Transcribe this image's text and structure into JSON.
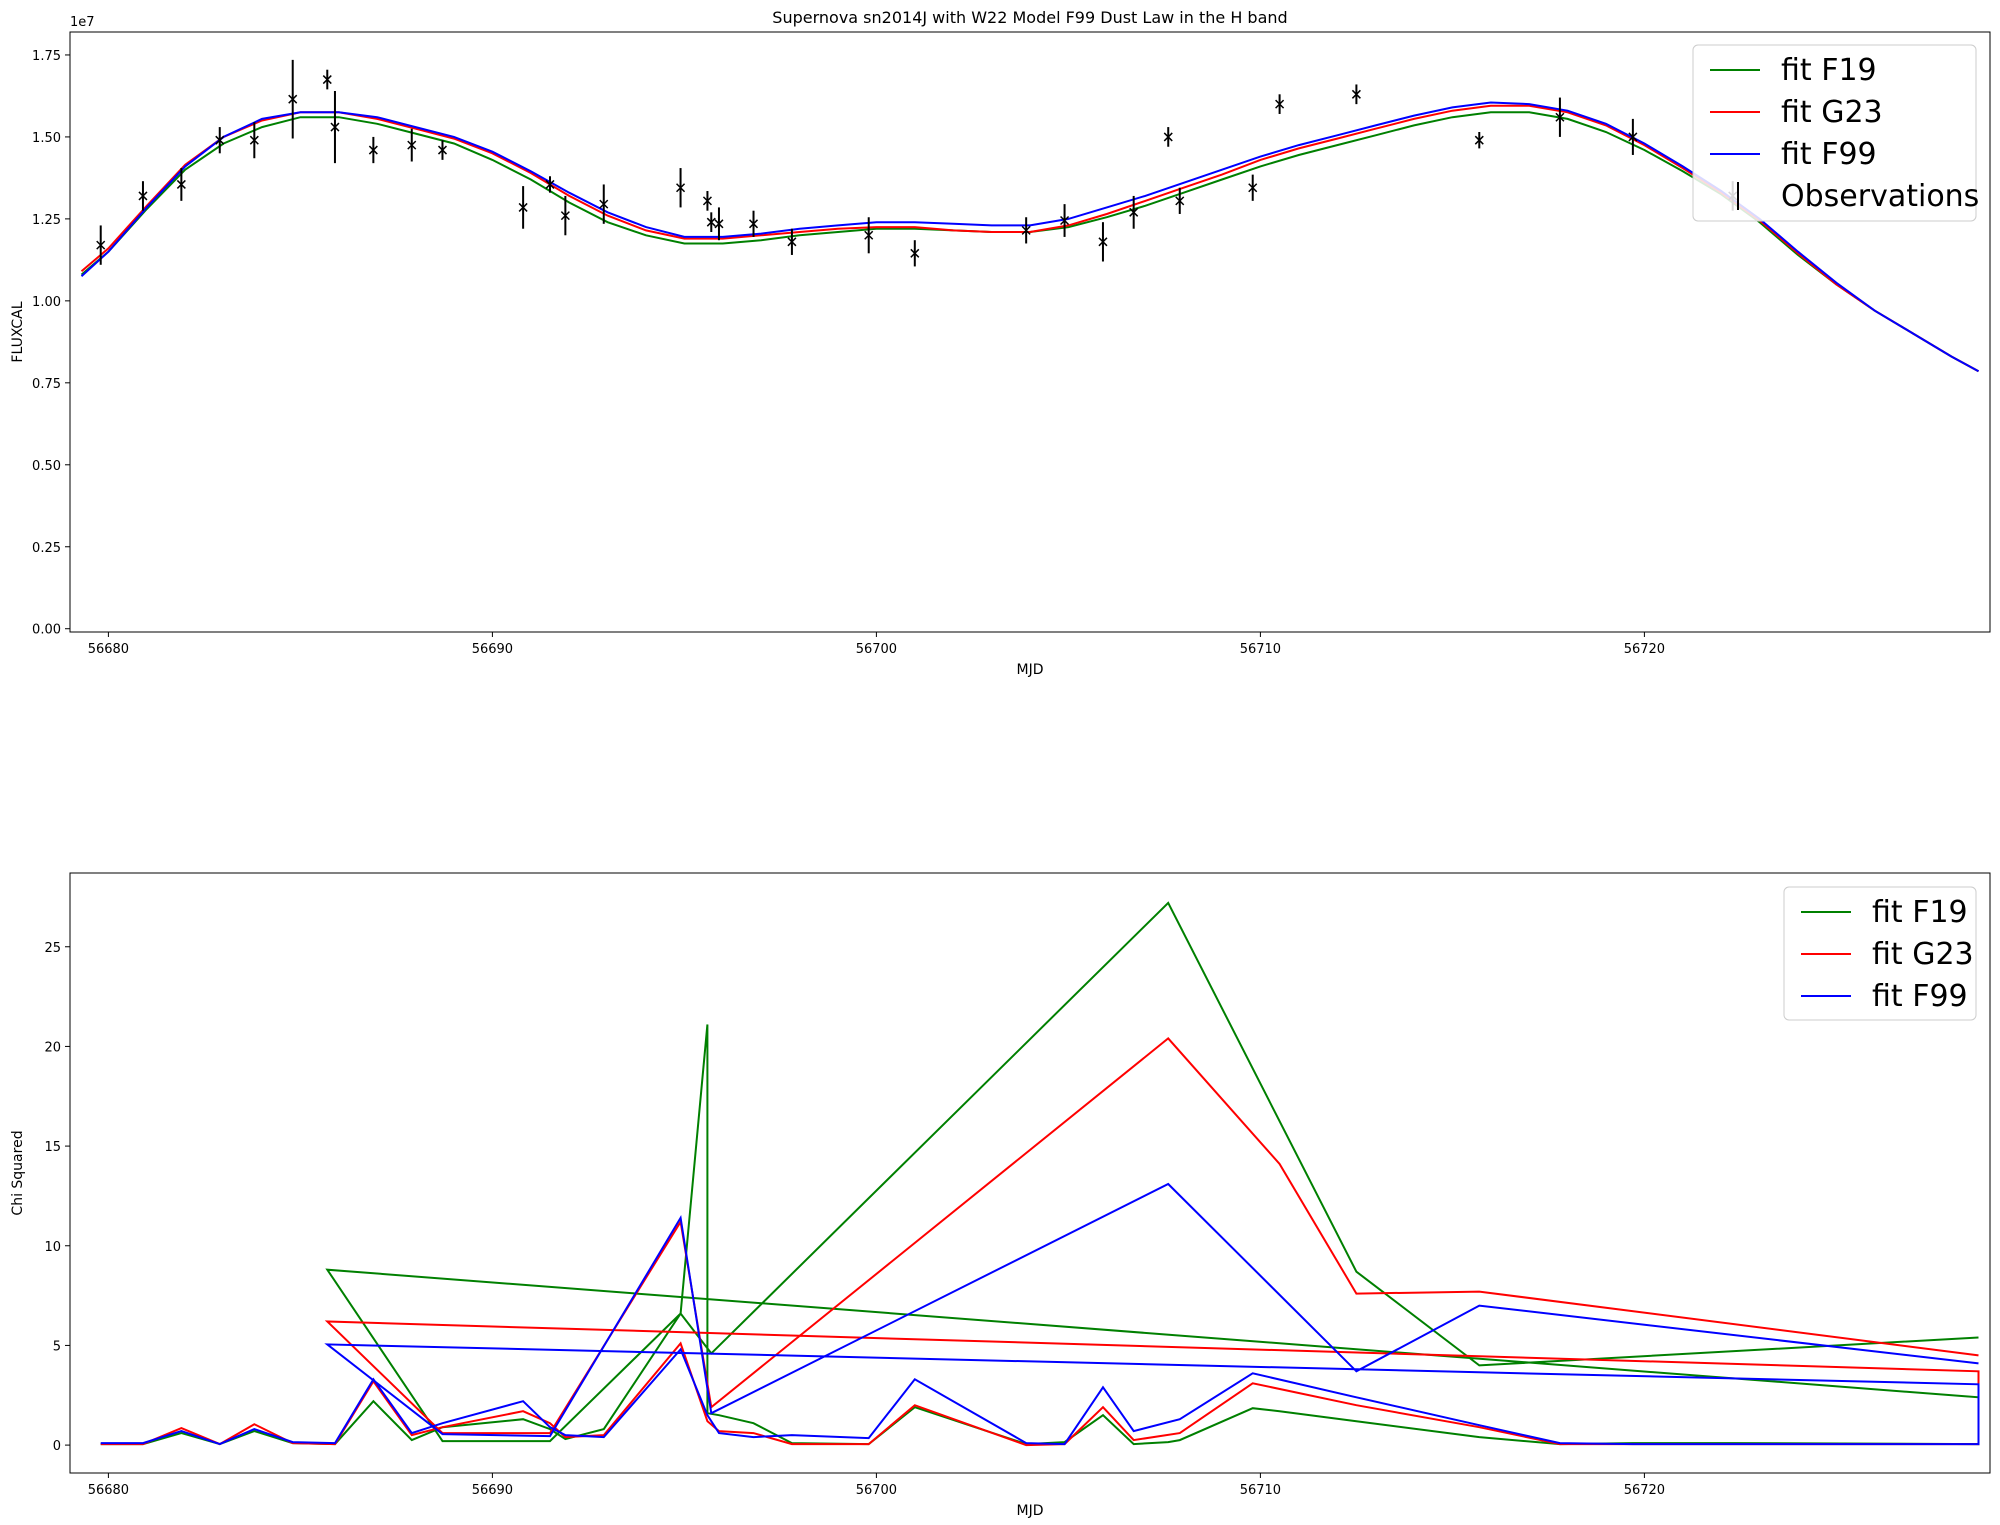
{
  "chart_data": [
    {
      "type": "line",
      "title": "Supernova sn2014J with W22 Model F99 Dust Law in the H band",
      "xlabel": "MJD",
      "ylabel": "FLUXCAL",
      "y_offset_text": "1e7",
      "y_scale": 10000000,
      "xlim": [
        56679.0,
        56729.0
      ],
      "ylim": [
        -0.01,
        1.82
      ],
      "xticks": [
        56680,
        56690,
        56700,
        56710,
        56720
      ],
      "xtick_labels": [
        "56680",
        "56690",
        "56700",
        "56710",
        "56720"
      ],
      "yticks": [
        0.0,
        0.25,
        0.5,
        0.75,
        1.0,
        1.25,
        1.5,
        1.75
      ],
      "ytick_labels": [
        "0.00",
        "0.25",
        "0.50",
        "0.75",
        "1.00",
        "1.25",
        "1.50",
        "1.75"
      ],
      "legend_position": "upper right",
      "series": [
        {
          "name": "fit F19",
          "color": "#008000",
          "x": [
            56679.3,
            56680.0,
            56681.0,
            56682.0,
            56683.0,
            56684.0,
            56685.0,
            56686.0,
            56687.0,
            56688.0,
            56689.0,
            56690.0,
            56691.0,
            56692.0,
            56693.0,
            56694.0,
            56695.0,
            56696.0,
            56697.0,
            56698.0,
            56699.0,
            56700.0,
            56701.0,
            56702.0,
            56703.0,
            56704.0,
            56705.0,
            56706.0,
            56707.0,
            56708.0,
            56709.0,
            56710.0,
            56711.0,
            56712.0,
            56713.0,
            56714.0,
            56715.0,
            56716.0,
            56717.0,
            56718.0,
            56719.0,
            56720.0,
            56721.0,
            56722.0,
            56723.0,
            56724.0,
            56725.0,
            56726.0,
            56727.0,
            56728.0,
            56728.7
          ],
          "y": [
            1.08,
            1.15,
            1.28,
            1.4,
            1.48,
            1.53,
            1.56,
            1.56,
            1.54,
            1.51,
            1.48,
            1.43,
            1.37,
            1.3,
            1.24,
            1.2,
            1.175,
            1.175,
            1.185,
            1.2,
            1.21,
            1.22,
            1.22,
            1.215,
            1.21,
            1.21,
            1.225,
            1.255,
            1.29,
            1.33,
            1.37,
            1.41,
            1.445,
            1.475,
            1.505,
            1.535,
            1.56,
            1.575,
            1.575,
            1.555,
            1.515,
            1.46,
            1.395,
            1.325,
            1.24,
            1.14,
            1.05,
            0.97,
            0.9,
            0.83,
            0.785
          ]
        },
        {
          "name": "fit G23",
          "color": "#ff0000",
          "x": [
            56679.3,
            56680.0,
            56681.0,
            56682.0,
            56683.0,
            56684.0,
            56685.0,
            56686.0,
            56687.0,
            56688.0,
            56689.0,
            56690.0,
            56691.0,
            56692.0,
            56693.0,
            56694.0,
            56695.0,
            56696.0,
            56697.0,
            56698.0,
            56699.0,
            56700.0,
            56701.0,
            56702.0,
            56703.0,
            56704.0,
            56705.0,
            56706.0,
            56707.0,
            56708.0,
            56709.0,
            56710.0,
            56711.0,
            56712.0,
            56713.0,
            56714.0,
            56715.0,
            56716.0,
            56717.0,
            56718.0,
            56719.0,
            56720.0,
            56721.0,
            56722.0,
            56723.0,
            56724.0,
            56725.0,
            56726.0,
            56727.0,
            56728.0,
            56728.7
          ],
          "y": [
            1.09,
            1.16,
            1.29,
            1.415,
            1.5,
            1.55,
            1.575,
            1.575,
            1.555,
            1.525,
            1.495,
            1.45,
            1.39,
            1.32,
            1.26,
            1.215,
            1.19,
            1.19,
            1.2,
            1.21,
            1.22,
            1.225,
            1.225,
            1.215,
            1.21,
            1.21,
            1.23,
            1.265,
            1.305,
            1.345,
            1.385,
            1.43,
            1.465,
            1.495,
            1.525,
            1.555,
            1.58,
            1.595,
            1.595,
            1.575,
            1.535,
            1.475,
            1.405,
            1.33,
            1.245,
            1.145,
            1.05,
            0.97,
            0.9,
            0.83,
            0.785
          ]
        },
        {
          "name": "fit F99",
          "color": "#0000ff",
          "x": [
            56679.3,
            56680.0,
            56681.0,
            56682.0,
            56683.0,
            56684.0,
            56685.0,
            56686.0,
            56687.0,
            56688.0,
            56689.0,
            56690.0,
            56691.0,
            56692.0,
            56693.0,
            56694.0,
            56695.0,
            56696.0,
            56697.0,
            56698.0,
            56699.0,
            56700.0,
            56701.0,
            56702.0,
            56703.0,
            56704.0,
            56705.0,
            56706.0,
            56707.0,
            56708.0,
            56709.0,
            56710.0,
            56711.0,
            56712.0,
            56713.0,
            56714.0,
            56715.0,
            56716.0,
            56717.0,
            56718.0,
            56719.0,
            56720.0,
            56721.0,
            56722.0,
            56723.0,
            56724.0,
            56725.0,
            56726.0,
            56727.0,
            56728.0,
            56728.7
          ],
          "y": [
            1.075,
            1.15,
            1.285,
            1.41,
            1.5,
            1.555,
            1.575,
            1.575,
            1.56,
            1.53,
            1.5,
            1.455,
            1.395,
            1.33,
            1.27,
            1.225,
            1.195,
            1.195,
            1.205,
            1.22,
            1.23,
            1.24,
            1.24,
            1.235,
            1.23,
            1.23,
            1.25,
            1.285,
            1.32,
            1.36,
            1.4,
            1.44,
            1.475,
            1.505,
            1.535,
            1.565,
            1.59,
            1.605,
            1.6,
            1.58,
            1.54,
            1.48,
            1.41,
            1.335,
            1.25,
            1.15,
            1.055,
            0.97,
            0.9,
            0.83,
            0.785
          ]
        },
        {
          "name": "Observations",
          "color": "#000000",
          "marker": "x",
          "x": [
            56679.8,
            56680.9,
            56681.9,
            56682.9,
            56683.8,
            56684.8,
            56685.7,
            56685.9,
            56686.9,
            56687.9,
            56688.7,
            56690.8,
            56691.5,
            56691.9,
            56692.9,
            56694.9,
            56695.6,
            56695.7,
            56695.9,
            56696.8,
            56697.8,
            56699.8,
            56701.0,
            56703.9,
            56704.9,
            56705.9,
            56706.7,
            56707.6,
            56707.9,
            56709.8,
            56710.5,
            56712.5,
            56715.7,
            56717.8,
            56719.7,
            56722.3
          ],
          "y": [
            1.17,
            1.32,
            1.355,
            1.49,
            1.49,
            1.615,
            1.675,
            1.53,
            1.46,
            1.475,
            1.46,
            1.285,
            1.355,
            1.26,
            1.295,
            1.345,
            1.305,
            1.24,
            1.235,
            1.235,
            1.18,
            1.2,
            1.145,
            1.215,
            1.245,
            1.18,
            1.27,
            1.5,
            1.305,
            1.345,
            1.6,
            1.63,
            1.49,
            1.56,
            1.5,
            1.32
          ],
          "yerr": [
            0.06,
            0.045,
            0.05,
            0.04,
            0.055,
            0.12,
            0.03,
            0.11,
            0.04,
            0.05,
            0.03,
            0.065,
            0.025,
            0.06,
            0.06,
            0.06,
            0.03,
            0.03,
            0.05,
            0.04,
            0.04,
            0.055,
            0.04,
            0.04,
            0.05,
            0.06,
            0.05,
            0.03,
            0.04,
            0.04,
            0.03,
            0.03,
            0.025,
            0.06,
            0.055,
            0.045
          ]
        }
      ]
    },
    {
      "type": "line",
      "title": "",
      "xlabel": "MJD",
      "ylabel": "Chi Squared",
      "xlim": [
        56679.0,
        56729.0
      ],
      "ylim": [
        -1.4,
        28.7
      ],
      "xticks": [
        56680,
        56690,
        56700,
        56710,
        56720
      ],
      "xtick_labels": [
        "56680",
        "56690",
        "56700",
        "56710",
        "56720"
      ],
      "yticks": [
        0,
        5,
        10,
        15,
        20,
        25
      ],
      "ytick_labels": [
        "0",
        "5",
        "10",
        "15",
        "20",
        "25"
      ],
      "legend_position": "upper right",
      "series": [
        {
          "name": "fit F19",
          "color": "#008000",
          "x": [
            56679.8,
            56680.9,
            56681.9,
            56682.9,
            56683.8,
            56684.8,
            56685.9,
            56686.9,
            56687.9,
            56688.7,
            56690.8,
            56691.5,
            56691.9,
            56692.9,
            56694.9,
            56695.6,
            56695.6,
            56695.9,
            56696.8,
            56697.8,
            56699.8,
            56701.0,
            56703.9,
            56704.9,
            56705.9,
            56706.7,
            56707.6,
            56707.9,
            56709.8,
            56710.5,
            56712.5,
            56715.7,
            56717.8,
            56719.7,
            56722.3,
            56728.7,
            56728.7,
            56685.7,
            56688.7,
            56691.5,
            56694.9,
            56695.7,
            56707.6,
            56712.5,
            56715.7,
            56728.7
          ],
          "y": [
            0.05,
            0.05,
            0.6,
            0.05,
            0.7,
            0.1,
            0.05,
            2.2,
            0.25,
            0.9,
            1.3,
            0.8,
            0.3,
            0.8,
            6.6,
            21.1,
            1.6,
            1.5,
            1.1,
            0.1,
            0.05,
            1.9,
            0.05,
            0.15,
            1.5,
            0.05,
            0.15,
            0.25,
            1.85,
            1.7,
            1.2,
            0.4,
            0.05,
            0.1,
            0.1,
            0.05,
            2.4,
            8.8,
            0.2,
            0.2,
            6.6,
            4.6,
            27.2,
            8.7,
            4.0,
            5.4
          ]
        },
        {
          "name": "fit G23",
          "color": "#ff0000",
          "x": [
            56679.8,
            56680.9,
            56681.9,
            56682.9,
            56683.8,
            56684.8,
            56685.9,
            56686.9,
            56687.9,
            56688.7,
            56690.8,
            56691.5,
            56691.9,
            56692.9,
            56694.9,
            56695.6,
            56695.9,
            56696.8,
            56697.8,
            56699.8,
            56701.0,
            56703.9,
            56704.9,
            56705.9,
            56706.7,
            56707.9,
            56709.8,
            56712.5,
            56715.7,
            56717.8,
            56719.7,
            56722.3,
            56728.7,
            56728.7,
            56685.7,
            56688.7,
            56691.5,
            56694.9,
            56695.7,
            56707.6,
            56710.5,
            56712.5,
            56715.7,
            56728.7
          ],
          "y": [
            0.05,
            0.05,
            0.85,
            0.05,
            1.05,
            0.1,
            0.05,
            3.2,
            0.5,
            0.9,
            1.7,
            1.1,
            0.4,
            0.5,
            5.1,
            1.2,
            0.7,
            0.6,
            0.05,
            0.05,
            2.0,
            0.0,
            0.05,
            1.9,
            0.25,
            0.6,
            3.1,
            2.0,
            0.9,
            0.05,
            0.05,
            0.05,
            0.05,
            3.7,
            6.2,
            0.6,
            0.6,
            11.2,
            1.9,
            20.4,
            14.1,
            7.6,
            7.7,
            4.5
          ]
        },
        {
          "name": "fit F99",
          "color": "#0000ff",
          "x": [
            56679.8,
            56680.9,
            56681.9,
            56682.9,
            56683.8,
            56684.8,
            56685.9,
            56686.9,
            56687.9,
            56688.7,
            56690.8,
            56691.5,
            56691.9,
            56692.9,
            56694.9,
            56695.6,
            56695.9,
            56696.8,
            56697.8,
            56699.8,
            56701.0,
            56703.9,
            56704.9,
            56705.9,
            56706.7,
            56707.9,
            56709.8,
            56712.5,
            56715.7,
            56717.8,
            56719.7,
            56722.3,
            56728.7,
            56728.7,
            56685.7,
            56688.7,
            56691.5,
            56694.9,
            56695.7,
            56707.6,
            56712.5,
            56715.7,
            56728.7
          ],
          "y": [
            0.1,
            0.1,
            0.7,
            0.05,
            0.8,
            0.15,
            0.1,
            3.3,
            0.6,
            1.1,
            2.2,
            0.9,
            0.5,
            0.4,
            4.8,
            1.5,
            0.6,
            0.4,
            0.5,
            0.35,
            3.3,
            0.1,
            0.05,
            2.9,
            0.7,
            1.3,
            3.6,
            2.4,
            1.0,
            0.1,
            0.05,
            0.05,
            0.05,
            3.05,
            5.05,
            0.55,
            0.45,
            11.4,
            1.6,
            13.1,
            3.7,
            7.0,
            4.1
          ]
        }
      ]
    }
  ]
}
